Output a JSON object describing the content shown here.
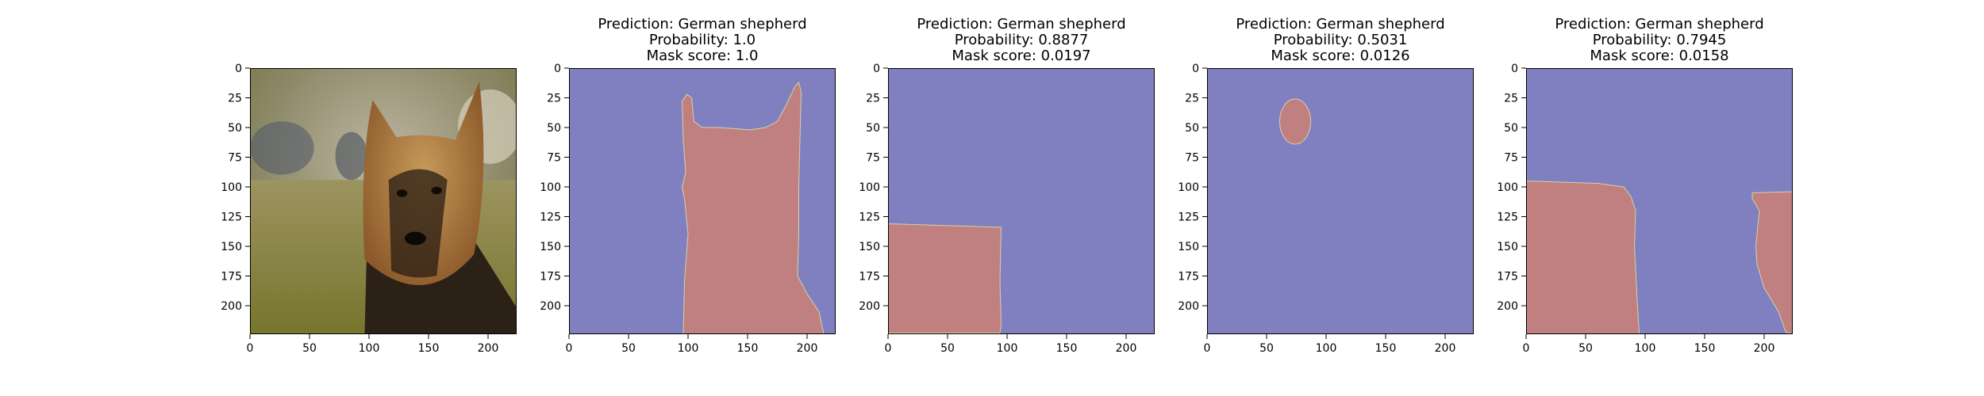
{
  "chart_data": [
    {
      "type": "image",
      "content": "photo",
      "title": [],
      "xlim": [
        0,
        224
      ],
      "ylim": [
        224,
        0
      ],
      "xticks": [
        0,
        50,
        100,
        150,
        200
      ],
      "yticks": [
        0,
        25,
        50,
        75,
        100,
        125,
        150,
        175,
        200
      ],
      "xtick_labels": [
        "0",
        "50",
        "100",
        "150",
        "200"
      ],
      "ytick_labels": [
        "0",
        "25",
        "50",
        "75",
        "100",
        "125",
        "150",
        "175",
        "200"
      ]
    },
    {
      "type": "heatmap",
      "content": "mask",
      "title": [
        "Prediction: German shepherd",
        "Probability: 1.0",
        "Mask score: 1.0"
      ],
      "mask_colors": {
        "background": "#8080c0",
        "foreground": "#c08080"
      },
      "mask_region": [
        [
          96,
          224
        ],
        [
          97,
          180
        ],
        [
          100,
          140
        ],
        [
          97,
          110
        ],
        [
          95,
          100
        ],
        [
          98,
          88
        ],
        [
          96,
          60
        ],
        [
          95,
          28
        ],
        [
          99,
          22
        ],
        [
          103,
          25
        ],
        [
          105,
          45
        ],
        [
          112,
          50
        ],
        [
          125,
          50
        ],
        [
          140,
          51
        ],
        [
          152,
          52
        ],
        [
          165,
          50
        ],
        [
          175,
          45
        ],
        [
          183,
          30
        ],
        [
          190,
          15
        ],
        [
          193,
          12
        ],
        [
          195,
          20
        ],
        [
          194,
          60
        ],
        [
          193,
          100
        ],
        [
          193,
          140
        ],
        [
          192,
          175
        ],
        [
          200,
          190
        ],
        [
          210,
          205
        ],
        [
          214,
          224
        ]
      ],
      "xlim": [
        0,
        224
      ],
      "ylim": [
        224,
        0
      ],
      "xticks": [
        0,
        50,
        100,
        150,
        200
      ],
      "yticks": [
        0,
        25,
        50,
        75,
        100,
        125,
        150,
        175,
        200
      ],
      "xtick_labels": [
        "0",
        "50",
        "100",
        "150",
        "200"
      ],
      "ytick_labels": [
        "0",
        "25",
        "50",
        "75",
        "100",
        "125",
        "150",
        "175",
        "200"
      ]
    },
    {
      "type": "heatmap",
      "content": "mask",
      "title": [
        "Prediction: German shepherd",
        "Probability: 0.8877",
        "Mask score: 0.0197"
      ],
      "mask_colors": {
        "background": "#8080c0",
        "foreground": "#c08080"
      },
      "mask_region": [
        [
          0,
          131
        ],
        [
          95,
          134
        ],
        [
          94,
          180
        ],
        [
          95,
          215
        ],
        [
          94,
          223
        ],
        [
          0,
          223
        ]
      ],
      "xlim": [
        0,
        224
      ],
      "ylim": [
        224,
        0
      ],
      "xticks": [
        0,
        50,
        100,
        150,
        200
      ],
      "yticks": [
        0,
        25,
        50,
        75,
        100,
        125,
        150,
        175,
        200
      ],
      "xtick_labels": [
        "0",
        "50",
        "100",
        "150",
        "200"
      ],
      "ytick_labels": [
        "0",
        "25",
        "50",
        "75",
        "100",
        "125",
        "150",
        "175",
        "200"
      ]
    },
    {
      "type": "heatmap",
      "content": "mask",
      "title": [
        "Prediction: German shepherd",
        "Probability: 0.5031",
        "Mask score: 0.0126"
      ],
      "mask_colors": {
        "background": "#8080c0",
        "foreground": "#c08080"
      },
      "mask_ellipse": {
        "cx": 74,
        "cy": 45,
        "rx": 13,
        "ry": 19
      },
      "xlim": [
        0,
        224
      ],
      "ylim": [
        224,
        0
      ],
      "xticks": [
        0,
        50,
        100,
        150,
        200
      ],
      "yticks": [
        0,
        25,
        50,
        75,
        100,
        125,
        150,
        175,
        200
      ],
      "xtick_labels": [
        "0",
        "50",
        "100",
        "150",
        "200"
      ],
      "ytick_labels": [
        "0",
        "25",
        "50",
        "75",
        "100",
        "125",
        "150",
        "175",
        "200"
      ]
    },
    {
      "type": "heatmap",
      "content": "mask",
      "title": [
        "Prediction: German shepherd",
        "Probability: 0.7945",
        "Mask score: 0.0158"
      ],
      "mask_colors": {
        "background": "#8080c0",
        "foreground": "#c08080"
      },
      "mask_region": [
        [
          0,
          95
        ],
        [
          60,
          97
        ],
        [
          82,
          100
        ],
        [
          88,
          108
        ],
        [
          92,
          120
        ],
        [
          91,
          150
        ],
        [
          93,
          190
        ],
        [
          95,
          224
        ],
        [
          0,
          224
        ]
      ],
      "mask_region_2": [
        [
          190,
          105
        ],
        [
          224,
          104
        ],
        [
          224,
          224
        ],
        [
          218,
          222
        ],
        [
          212,
          205
        ],
        [
          200,
          185
        ],
        [
          194,
          165
        ],
        [
          193,
          150
        ],
        [
          196,
          120
        ],
        [
          190,
          110
        ]
      ],
      "xlim": [
        0,
        224
      ],
      "ylim": [
        224,
        0
      ],
      "xticks": [
        0,
        50,
        100,
        150,
        200
      ],
      "yticks": [
        0,
        25,
        50,
        75,
        100,
        125,
        150,
        175,
        200
      ],
      "xtick_labels": [
        "0",
        "50",
        "100",
        "150",
        "200"
      ],
      "ytick_labels": [
        "0",
        "25",
        "50",
        "75",
        "100",
        "125",
        "150",
        "175",
        "200"
      ]
    }
  ]
}
